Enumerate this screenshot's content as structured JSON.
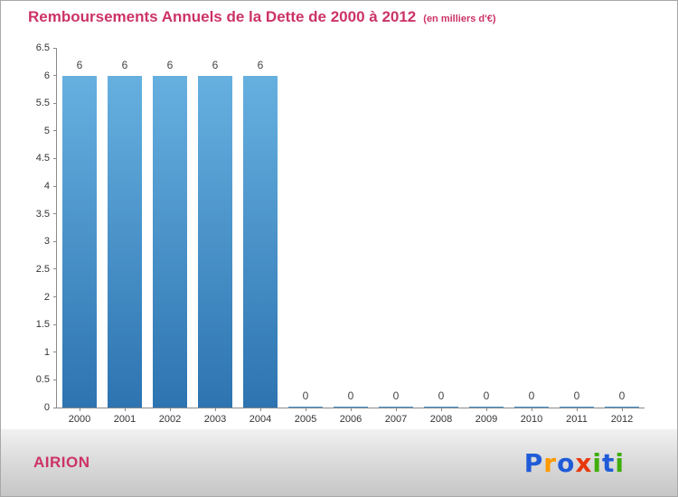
{
  "header": {
    "title": "Remboursements Annuels de la Dette de 2000 à 2012",
    "subtitle": "(en milliers d'€)",
    "title_color": "#cc3366"
  },
  "chart_data": {
    "type": "bar",
    "title": "Remboursements Annuels de la Dette de 2000 à 2012",
    "unit_note": "(en milliers d'€)",
    "categories": [
      "2000",
      "2001",
      "2002",
      "2003",
      "2004",
      "2005",
      "2006",
      "2007",
      "2008",
      "2009",
      "2010",
      "2011",
      "2012"
    ],
    "values": [
      6,
      6,
      6,
      6,
      6,
      0,
      0,
      0,
      0,
      0,
      0,
      0,
      0
    ],
    "xlabel": "",
    "ylabel": "",
    "ylim": [
      0,
      6.5
    ],
    "ytick_step": 0.5,
    "grid": false,
    "legend_position": "none",
    "bar_gradient_top": "#66b0e0",
    "bar_gradient_bottom": "#2d74b1",
    "axis_color": "#8a8a8a",
    "tick_label_color": "#333333",
    "value_label_color": "#444444"
  },
  "footer": {
    "org_name": "AIRION",
    "org_color": "#cc3366",
    "logo_letters": [
      {
        "ch": "P",
        "color": "#1f5bd8"
      },
      {
        "ch": "r",
        "color": "#ff9900"
      },
      {
        "ch": "o",
        "color": "#1f5bd8"
      },
      {
        "ch": "x",
        "color": "#e8380d"
      },
      {
        "ch": "i",
        "color": "#3fae0c"
      },
      {
        "ch": "t",
        "color": "#1f5bd8"
      },
      {
        "ch": "i",
        "color": "#3fae0c"
      }
    ]
  }
}
